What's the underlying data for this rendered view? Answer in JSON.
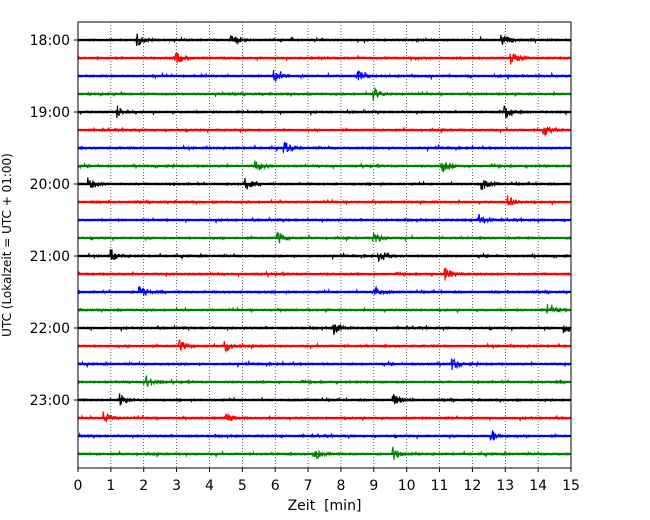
{
  "chart_data": {
    "type": "line",
    "title": "",
    "xlabel": "Zeit  [min]",
    "ylabel": "UTC (Lokalzeit = UTC + 01:00)",
    "xlim": [
      0,
      15
    ],
    "x_ticks": [
      0,
      1,
      2,
      3,
      4,
      5,
      6,
      7,
      8,
      9,
      10,
      11,
      12,
      13,
      14,
      15
    ],
    "x_tick_labels": [
      "0",
      "1",
      "2",
      "3",
      "4",
      "5",
      "6",
      "7",
      "8",
      "9",
      "10",
      "11",
      "12",
      "13",
      "14",
      "15"
    ],
    "y_tick_labels": [
      "18:00",
      "19:00",
      "20:00",
      "21:00",
      "22:00",
      "23:00"
    ],
    "y_tick_rows": [
      0,
      4,
      8,
      12,
      16,
      20
    ],
    "grid": "vertical-dotted",
    "rows": [
      {
        "start": "18:00",
        "color": "#000000"
      },
      {
        "start": "18:15",
        "color": "#ff0000"
      },
      {
        "start": "18:30",
        "color": "#0000ff"
      },
      {
        "start": "18:45",
        "color": "#008000"
      },
      {
        "start": "19:00",
        "color": "#000000"
      },
      {
        "start": "19:15",
        "color": "#ff0000"
      },
      {
        "start": "19:30",
        "color": "#0000ff"
      },
      {
        "start": "19:45",
        "color": "#008000"
      },
      {
        "start": "20:00",
        "color": "#000000"
      },
      {
        "start": "20:15",
        "color": "#ff0000"
      },
      {
        "start": "20:30",
        "color": "#0000ff"
      },
      {
        "start": "20:45",
        "color": "#008000"
      },
      {
        "start": "21:00",
        "color": "#000000"
      },
      {
        "start": "21:15",
        "color": "#ff0000"
      },
      {
        "start": "21:30",
        "color": "#0000ff"
      },
      {
        "start": "21:45",
        "color": "#008000"
      },
      {
        "start": "22:00",
        "color": "#000000"
      },
      {
        "start": "22:15",
        "color": "#ff0000"
      },
      {
        "start": "22:30",
        "color": "#0000ff"
      },
      {
        "start": "22:45",
        "color": "#008000"
      },
      {
        "start": "23:00",
        "color": "#000000"
      },
      {
        "start": "23:15",
        "color": "#ff0000"
      },
      {
        "start": "23:30",
        "color": "#0000ff"
      },
      {
        "start": "23:45",
        "color": "#008000"
      }
    ],
    "events": [
      {
        "row": 0,
        "x": 1.8
      },
      {
        "row": 0,
        "x": 4.7
      },
      {
        "row": 0,
        "x": 12.9
      },
      {
        "row": 1,
        "x": 3.0
      },
      {
        "row": 1,
        "x": 13.2
      },
      {
        "row": 2,
        "x": 6.0
      },
      {
        "row": 2,
        "x": 8.5
      },
      {
        "row": 3,
        "x": 9.0
      },
      {
        "row": 4,
        "x": 1.2
      },
      {
        "row": 4,
        "x": 13.0
      },
      {
        "row": 5,
        "x": 14.2
      },
      {
        "row": 6,
        "x": 6.3
      },
      {
        "row": 7,
        "x": 5.4
      },
      {
        "row": 7,
        "x": 11.1
      },
      {
        "row": 8,
        "x": 0.35
      },
      {
        "row": 8,
        "x": 5.1
      },
      {
        "row": 8,
        "x": 12.3
      },
      {
        "row": 9,
        "x": 13.1
      },
      {
        "row": 10,
        "x": 12.2
      },
      {
        "row": 11,
        "x": 6.1
      },
      {
        "row": 11,
        "x": 9.0
      },
      {
        "row": 12,
        "x": 1.0
      },
      {
        "row": 12,
        "x": 9.2
      },
      {
        "row": 13,
        "x": 11.2
      },
      {
        "row": 14,
        "x": 1.9
      },
      {
        "row": 14,
        "x": 9.0
      },
      {
        "row": 15,
        "x": 14.3
      },
      {
        "row": 16,
        "x": 7.8
      },
      {
        "row": 16,
        "x": 14.8
      },
      {
        "row": 17,
        "x": 3.1
      },
      {
        "row": 17,
        "x": 4.5
      },
      {
        "row": 18,
        "x": 11.4
      },
      {
        "row": 19,
        "x": 2.1
      },
      {
        "row": 20,
        "x": 1.3
      },
      {
        "row": 20,
        "x": 9.6
      },
      {
        "row": 21,
        "x": 4.5
      },
      {
        "row": 21,
        "x": 0.8
      },
      {
        "row": 22,
        "x": 12.6
      },
      {
        "row": 23,
        "x": 9.6
      },
      {
        "row": 23,
        "x": 7.2
      }
    ]
  }
}
